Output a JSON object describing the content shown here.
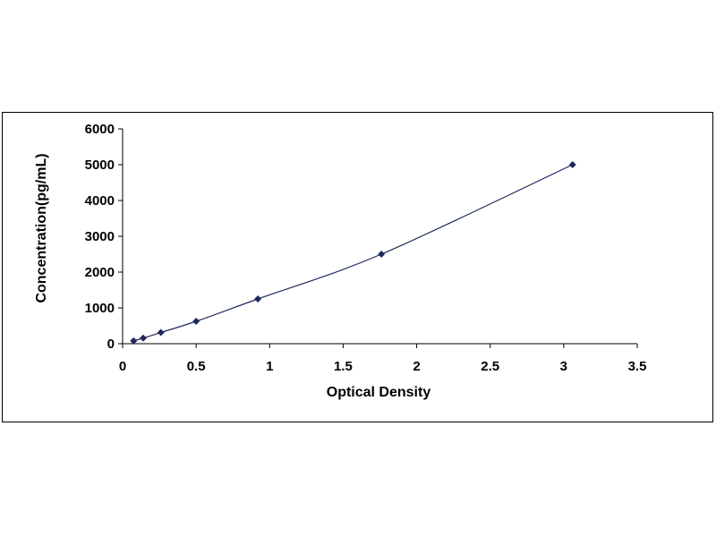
{
  "chart_data": {
    "type": "scatter",
    "title": "",
    "xlabel": "Optical Density",
    "ylabel": "Concentration(pg/mL)",
    "xlim": [
      0,
      3.5
    ],
    "ylim": [
      0,
      6000
    ],
    "x_ticks": [
      "0",
      "0.5",
      "1",
      "1.5",
      "2",
      "2.5",
      "3",
      "3.5"
    ],
    "y_ticks": [
      "0",
      "1000",
      "2000",
      "3000",
      "4000",
      "5000",
      "6000"
    ],
    "grid": false,
    "legend": "none",
    "marker_color": "#1f2a5a",
    "line_color": "#1f2a5a",
    "series": [
      {
        "x": [
          0.075,
          0.14,
          0.26,
          0.5,
          0.92,
          1.76,
          3.06
        ],
        "y": [
          78,
          156,
          312,
          625,
          1250,
          2500,
          5000
        ]
      }
    ]
  }
}
